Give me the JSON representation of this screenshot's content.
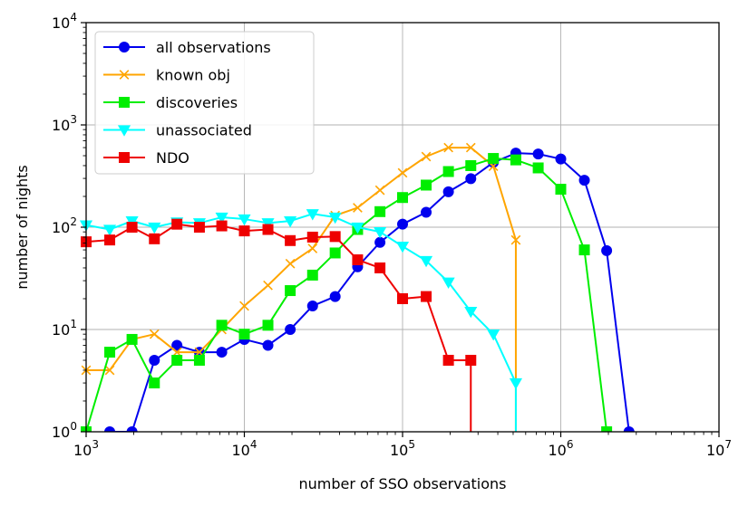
{
  "chart_data": {
    "type": "line",
    "xlabel": "number of SSO observations",
    "ylabel": "number of nights",
    "xscale": "log",
    "yscale": "log",
    "xlim": [
      1000,
      10000000
    ],
    "ylim": [
      1,
      10000
    ],
    "grid": true,
    "legend_position": "top-left",
    "x_tick_labels": [
      {
        "value": 1000,
        "base": "10",
        "exp": "3"
      },
      {
        "value": 10000,
        "base": "10",
        "exp": "4"
      },
      {
        "value": 100000,
        "base": "10",
        "exp": "5"
      },
      {
        "value": 1000000,
        "base": "10",
        "exp": "6"
      },
      {
        "value": 10000000,
        "base": "10",
        "exp": "7"
      }
    ],
    "y_tick_labels": [
      {
        "value": 1,
        "base": "10",
        "exp": "0"
      },
      {
        "value": 10,
        "base": "10",
        "exp": "1"
      },
      {
        "value": 100,
        "base": "10",
        "exp": "2"
      },
      {
        "value": 1000,
        "base": "10",
        "exp": "3"
      },
      {
        "value": 10000,
        "base": "10",
        "exp": "4"
      }
    ],
    "series": [
      {
        "name": "all observations",
        "color": "#0000ee",
        "marker": "circle",
        "points": [
          [
            1410,
            1
          ],
          [
            1950,
            1
          ],
          [
            2700,
            5
          ],
          [
            3750,
            7
          ],
          [
            5200,
            6
          ],
          [
            7200,
            6
          ],
          [
            10000,
            8
          ],
          [
            14100,
            7
          ],
          [
            19500,
            10
          ],
          [
            27000,
            17
          ],
          [
            37500,
            21
          ],
          [
            52000,
            41
          ],
          [
            72000,
            71
          ],
          [
            100000,
            107
          ],
          [
            141000,
            140
          ],
          [
            195000,
            222
          ],
          [
            270000,
            298
          ],
          [
            375000,
            430
          ],
          [
            520000,
            530
          ],
          [
            720000,
            520
          ],
          [
            1000000,
            465
          ],
          [
            1410000,
            288
          ],
          [
            1950000,
            59
          ],
          [
            2700000,
            1
          ]
        ]
      },
      {
        "name": "known obj",
        "color": "#ffa500",
        "marker": "x",
        "points": [
          [
            1000,
            4
          ],
          [
            1410,
            4
          ],
          [
            1950,
            8
          ],
          [
            2700,
            9
          ],
          [
            3750,
            6
          ],
          [
            5200,
            6
          ],
          [
            7200,
            10
          ],
          [
            10000,
            17
          ],
          [
            14100,
            27
          ],
          [
            19500,
            44
          ],
          [
            27000,
            62
          ],
          [
            37500,
            130
          ],
          [
            52000,
            155
          ],
          [
            72000,
            230
          ],
          [
            100000,
            340
          ],
          [
            141000,
            490
          ],
          [
            195000,
            600
          ],
          [
            270000,
            600
          ],
          [
            375000,
            395
          ],
          [
            520000,
            75
          ],
          [
            520000,
            1
          ]
        ]
      },
      {
        "name": "discoveries",
        "color": "#00ee00",
        "marker": "square",
        "points": [
          [
            1000,
            1
          ],
          [
            1410,
            6
          ],
          [
            1950,
            8
          ],
          [
            2700,
            3
          ],
          [
            3750,
            5
          ],
          [
            5200,
            5
          ],
          [
            7200,
            11
          ],
          [
            10000,
            9
          ],
          [
            14100,
            11
          ],
          [
            19500,
            24
          ],
          [
            27000,
            34
          ],
          [
            37500,
            56
          ],
          [
            52000,
            95
          ],
          [
            72000,
            142
          ],
          [
            100000,
            195
          ],
          [
            141000,
            258
          ],
          [
            195000,
            350
          ],
          [
            270000,
            400
          ],
          [
            375000,
            470
          ],
          [
            520000,
            455
          ],
          [
            720000,
            380
          ],
          [
            1000000,
            235
          ],
          [
            1410000,
            60
          ],
          [
            1950000,
            1
          ]
        ]
      },
      {
        "name": "unassociated",
        "color": "#00ffff",
        "marker": "triangle-down",
        "points": [
          [
            1000,
            105
          ],
          [
            1410,
            95
          ],
          [
            1950,
            115
          ],
          [
            2700,
            100
          ],
          [
            3750,
            112
          ],
          [
            5200,
            110
          ],
          [
            7200,
            125
          ],
          [
            10000,
            120
          ],
          [
            14100,
            110
          ],
          [
            19500,
            115
          ],
          [
            27000,
            135
          ],
          [
            37500,
            125
          ],
          [
            52000,
            100
          ],
          [
            72000,
            90
          ],
          [
            100000,
            65
          ],
          [
            141000,
            47
          ],
          [
            195000,
            29
          ],
          [
            270000,
            15
          ],
          [
            375000,
            9
          ],
          [
            520000,
            3
          ],
          [
            520000,
            1
          ]
        ]
      },
      {
        "name": "NDO",
        "color": "#ee0000",
        "marker": "square",
        "points": [
          [
            1000,
            72
          ],
          [
            1410,
            75
          ],
          [
            1950,
            100
          ],
          [
            2700,
            77
          ],
          [
            3750,
            107
          ],
          [
            5200,
            100
          ],
          [
            7200,
            103
          ],
          [
            10000,
            92
          ],
          [
            14100,
            95
          ],
          [
            19500,
            74
          ],
          [
            27000,
            80
          ],
          [
            37500,
            81
          ],
          [
            52000,
            48
          ],
          [
            72000,
            40
          ],
          [
            100000,
            20
          ],
          [
            141000,
            21
          ],
          [
            195000,
            5
          ],
          [
            270000,
            5
          ],
          [
            270000,
            1
          ]
        ]
      }
    ]
  }
}
